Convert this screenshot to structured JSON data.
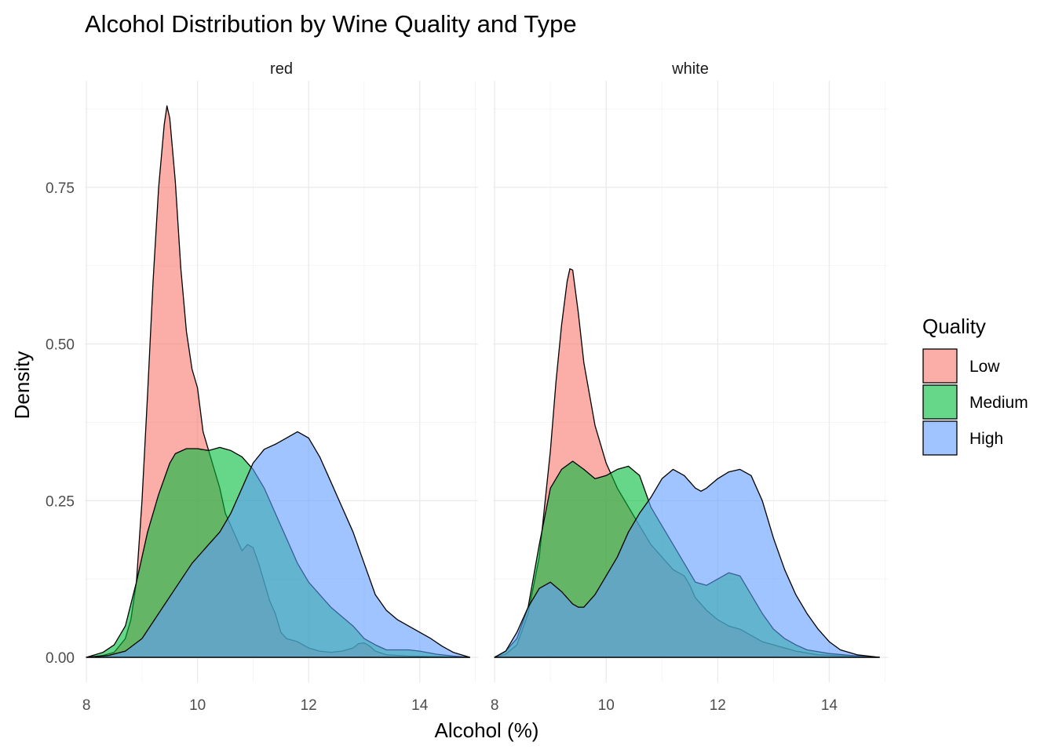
{
  "chart_data": {
    "type": "area",
    "subtype": "density",
    "title": "Alcohol Distribution by Wine Quality and Type",
    "xlabel": "Alcohol (%)",
    "ylabel": "Density",
    "xlim": [
      7.97,
      15.05
    ],
    "ylim": [
      -0.04,
      0.92
    ],
    "x_ticks": [
      8,
      10,
      12,
      14
    ],
    "y_ticks": [
      0,
      0.25,
      0.5,
      0.75
    ],
    "y_tick_labels": [
      "0.00",
      "0.25",
      "0.50",
      "0.75"
    ],
    "grid": true,
    "fill_opacity": 0.6,
    "legend": {
      "title": "Quality",
      "position": "right",
      "entries": [
        {
          "name": "Low",
          "color": "#F8766D"
        },
        {
          "name": "Medium",
          "color": "#00BA38"
        },
        {
          "name": "High",
          "color": "#619CFF"
        }
      ]
    },
    "facets": [
      {
        "strip": "red",
        "series": [
          {
            "name": "Low",
            "color": "#F8766D",
            "points": [
              [
                8.0,
                0.0
              ],
              [
                8.3,
                0.003
              ],
              [
                8.5,
                0.008
              ],
              [
                8.7,
                0.03
              ],
              [
                8.8,
                0.06
              ],
              [
                8.9,
                0.12
              ],
              [
                9.0,
                0.25
              ],
              [
                9.1,
                0.42
              ],
              [
                9.2,
                0.6
              ],
              [
                9.3,
                0.75
              ],
              [
                9.4,
                0.85
              ],
              [
                9.45,
                0.88
              ],
              [
                9.5,
                0.86
              ],
              [
                9.6,
                0.76
              ],
              [
                9.7,
                0.62
              ],
              [
                9.8,
                0.52
              ],
              [
                9.9,
                0.46
              ],
              [
                10.0,
                0.43
              ],
              [
                10.1,
                0.36
              ],
              [
                10.2,
                0.33
              ],
              [
                10.3,
                0.3
              ],
              [
                10.4,
                0.27
              ],
              [
                10.5,
                0.23
              ],
              [
                10.6,
                0.21
              ],
              [
                10.7,
                0.19
              ],
              [
                10.8,
                0.17
              ],
              [
                10.9,
                0.18
              ],
              [
                11.0,
                0.175
              ],
              [
                11.1,
                0.15
              ],
              [
                11.2,
                0.12
              ],
              [
                11.3,
                0.09
              ],
              [
                11.4,
                0.07
              ],
              [
                11.5,
                0.04
              ],
              [
                11.6,
                0.03
              ],
              [
                11.8,
                0.025
              ],
              [
                12.0,
                0.015
              ],
              [
                12.2,
                0.01
              ],
              [
                12.4,
                0.008
              ],
              [
                12.6,
                0.01
              ],
              [
                12.8,
                0.015
              ],
              [
                12.9,
                0.022
              ],
              [
                13.0,
                0.023
              ],
              [
                13.1,
                0.018
              ],
              [
                13.2,
                0.01
              ],
              [
                13.4,
                0.004
              ],
              [
                13.8,
                0.002
              ],
              [
                14.3,
                0.001
              ],
              [
                14.9,
                0.0
              ]
            ]
          },
          {
            "name": "Medium",
            "color": "#00BA38",
            "points": [
              [
                8.0,
                0.0
              ],
              [
                8.3,
                0.008
              ],
              [
                8.5,
                0.02
              ],
              [
                8.7,
                0.05
              ],
              [
                8.9,
                0.12
              ],
              [
                9.1,
                0.2
              ],
              [
                9.3,
                0.26
              ],
              [
                9.5,
                0.31
              ],
              [
                9.6,
                0.325
              ],
              [
                9.8,
                0.333
              ],
              [
                10.0,
                0.333
              ],
              [
                10.2,
                0.33
              ],
              [
                10.4,
                0.335
              ],
              [
                10.6,
                0.33
              ],
              [
                10.8,
                0.32
              ],
              [
                11.0,
                0.3
              ],
              [
                11.2,
                0.27
              ],
              [
                11.4,
                0.23
              ],
              [
                11.6,
                0.19
              ],
              [
                11.8,
                0.15
              ],
              [
                12.0,
                0.12
              ],
              [
                12.2,
                0.1
              ],
              [
                12.4,
                0.08
              ],
              [
                12.6,
                0.065
              ],
              [
                12.8,
                0.05
              ],
              [
                12.9,
                0.04
              ],
              [
                13.0,
                0.03
              ],
              [
                13.2,
                0.02
              ],
              [
                13.4,
                0.012
              ],
              [
                13.6,
                0.012
              ],
              [
                13.8,
                0.012
              ],
              [
                14.0,
                0.01
              ],
              [
                14.3,
                0.005
              ],
              [
                14.6,
                0.002
              ],
              [
                14.9,
                0.0
              ]
            ]
          },
          {
            "name": "High",
            "color": "#619CFF",
            "points": [
              [
                8.0,
                0.0
              ],
              [
                8.4,
                0.003
              ],
              [
                8.7,
                0.01
              ],
              [
                9.0,
                0.03
              ],
              [
                9.3,
                0.07
              ],
              [
                9.6,
                0.11
              ],
              [
                9.9,
                0.15
              ],
              [
                10.2,
                0.18
              ],
              [
                10.4,
                0.2
              ],
              [
                10.6,
                0.23
              ],
              [
                10.8,
                0.27
              ],
              [
                11.0,
                0.31
              ],
              [
                11.2,
                0.332
              ],
              [
                11.4,
                0.34
              ],
              [
                11.6,
                0.35
              ],
              [
                11.8,
                0.36
              ],
              [
                12.0,
                0.35
              ],
              [
                12.2,
                0.32
              ],
              [
                12.4,
                0.28
              ],
              [
                12.6,
                0.24
              ],
              [
                12.8,
                0.2
              ],
              [
                13.0,
                0.15
              ],
              [
                13.2,
                0.1
              ],
              [
                13.4,
                0.075
              ],
              [
                13.6,
                0.06
              ],
              [
                13.8,
                0.05
              ],
              [
                14.0,
                0.04
              ],
              [
                14.2,
                0.03
              ],
              [
                14.4,
                0.018
              ],
              [
                14.6,
                0.008
              ],
              [
                14.9,
                0.0
              ]
            ]
          }
        ]
      },
      {
        "strip": "white",
        "series": [
          {
            "name": "Low",
            "color": "#F8766D",
            "points": [
              [
                8.0,
                0.0
              ],
              [
                8.2,
                0.005
              ],
              [
                8.4,
                0.02
              ],
              [
                8.6,
                0.07
              ],
              [
                8.8,
                0.16
              ],
              [
                9.0,
                0.33
              ],
              [
                9.1,
                0.44
              ],
              [
                9.2,
                0.53
              ],
              [
                9.3,
                0.6
              ],
              [
                9.35,
                0.62
              ],
              [
                9.4,
                0.618
              ],
              [
                9.5,
                0.55
              ],
              [
                9.6,
                0.47
              ],
              [
                9.7,
                0.42
              ],
              [
                9.8,
                0.37
              ],
              [
                9.9,
                0.34
              ],
              [
                10.0,
                0.31
              ],
              [
                10.2,
                0.27
              ],
              [
                10.4,
                0.24
              ],
              [
                10.6,
                0.21
              ],
              [
                10.8,
                0.18
              ],
              [
                11.0,
                0.16
              ],
              [
                11.2,
                0.14
              ],
              [
                11.4,
                0.13
              ],
              [
                11.5,
                0.115
              ],
              [
                11.6,
                0.095
              ],
              [
                11.8,
                0.075
              ],
              [
                12.0,
                0.06
              ],
              [
                12.2,
                0.05
              ],
              [
                12.4,
                0.045
              ],
              [
                12.6,
                0.035
              ],
              [
                12.8,
                0.025
              ],
              [
                13.0,
                0.02
              ],
              [
                13.4,
                0.01
              ],
              [
                13.8,
                0.004
              ],
              [
                14.3,
                0.002
              ],
              [
                14.9,
                0.0
              ]
            ]
          },
          {
            "name": "Medium",
            "color": "#00BA38",
            "points": [
              [
                8.0,
                0.0
              ],
              [
                8.2,
                0.01
              ],
              [
                8.4,
                0.03
              ],
              [
                8.6,
                0.08
              ],
              [
                8.8,
                0.18
              ],
              [
                9.0,
                0.27
              ],
              [
                9.2,
                0.3
              ],
              [
                9.4,
                0.313
              ],
              [
                9.6,
                0.3
              ],
              [
                9.8,
                0.285
              ],
              [
                10.0,
                0.29
              ],
              [
                10.2,
                0.3
              ],
              [
                10.4,
                0.305
              ],
              [
                10.6,
                0.29
              ],
              [
                10.8,
                0.24
              ],
              [
                11.0,
                0.21
              ],
              [
                11.2,
                0.18
              ],
              [
                11.4,
                0.15
              ],
              [
                11.6,
                0.12
              ],
              [
                11.8,
                0.115
              ],
              [
                12.0,
                0.125
              ],
              [
                12.2,
                0.135
              ],
              [
                12.4,
                0.13
              ],
              [
                12.6,
                0.1
              ],
              [
                12.8,
                0.07
              ],
              [
                13.0,
                0.045
              ],
              [
                13.2,
                0.03
              ],
              [
                13.4,
                0.02
              ],
              [
                13.6,
                0.012
              ],
              [
                14.0,
                0.006
              ],
              [
                14.4,
                0.003
              ],
              [
                14.9,
                0.0
              ]
            ]
          },
          {
            "name": "High",
            "color": "#619CFF",
            "points": [
              [
                8.0,
                0.0
              ],
              [
                8.2,
                0.01
              ],
              [
                8.4,
                0.04
              ],
              [
                8.6,
                0.08
              ],
              [
                8.8,
                0.11
              ],
              [
                9.0,
                0.12
              ],
              [
                9.2,
                0.105
              ],
              [
                9.4,
                0.085
              ],
              [
                9.5,
                0.08
              ],
              [
                9.6,
                0.08
              ],
              [
                9.8,
                0.1
              ],
              [
                10.0,
                0.13
              ],
              [
                10.2,
                0.16
              ],
              [
                10.4,
                0.2
              ],
              [
                10.6,
                0.23
              ],
              [
                10.8,
                0.255
              ],
              [
                11.0,
                0.285
              ],
              [
                11.2,
                0.3
              ],
              [
                11.4,
                0.29
              ],
              [
                11.6,
                0.27
              ],
              [
                11.7,
                0.265
              ],
              [
                11.8,
                0.27
              ],
              [
                12.0,
                0.285
              ],
              [
                12.2,
                0.296
              ],
              [
                12.4,
                0.3
              ],
              [
                12.6,
                0.29
              ],
              [
                12.8,
                0.25
              ],
              [
                13.0,
                0.19
              ],
              [
                13.2,
                0.14
              ],
              [
                13.4,
                0.1
              ],
              [
                13.6,
                0.07
              ],
              [
                13.8,
                0.045
              ],
              [
                14.0,
                0.025
              ],
              [
                14.2,
                0.012
              ],
              [
                14.5,
                0.004
              ],
              [
                14.9,
                0.0
              ]
            ]
          }
        ]
      }
    ]
  }
}
